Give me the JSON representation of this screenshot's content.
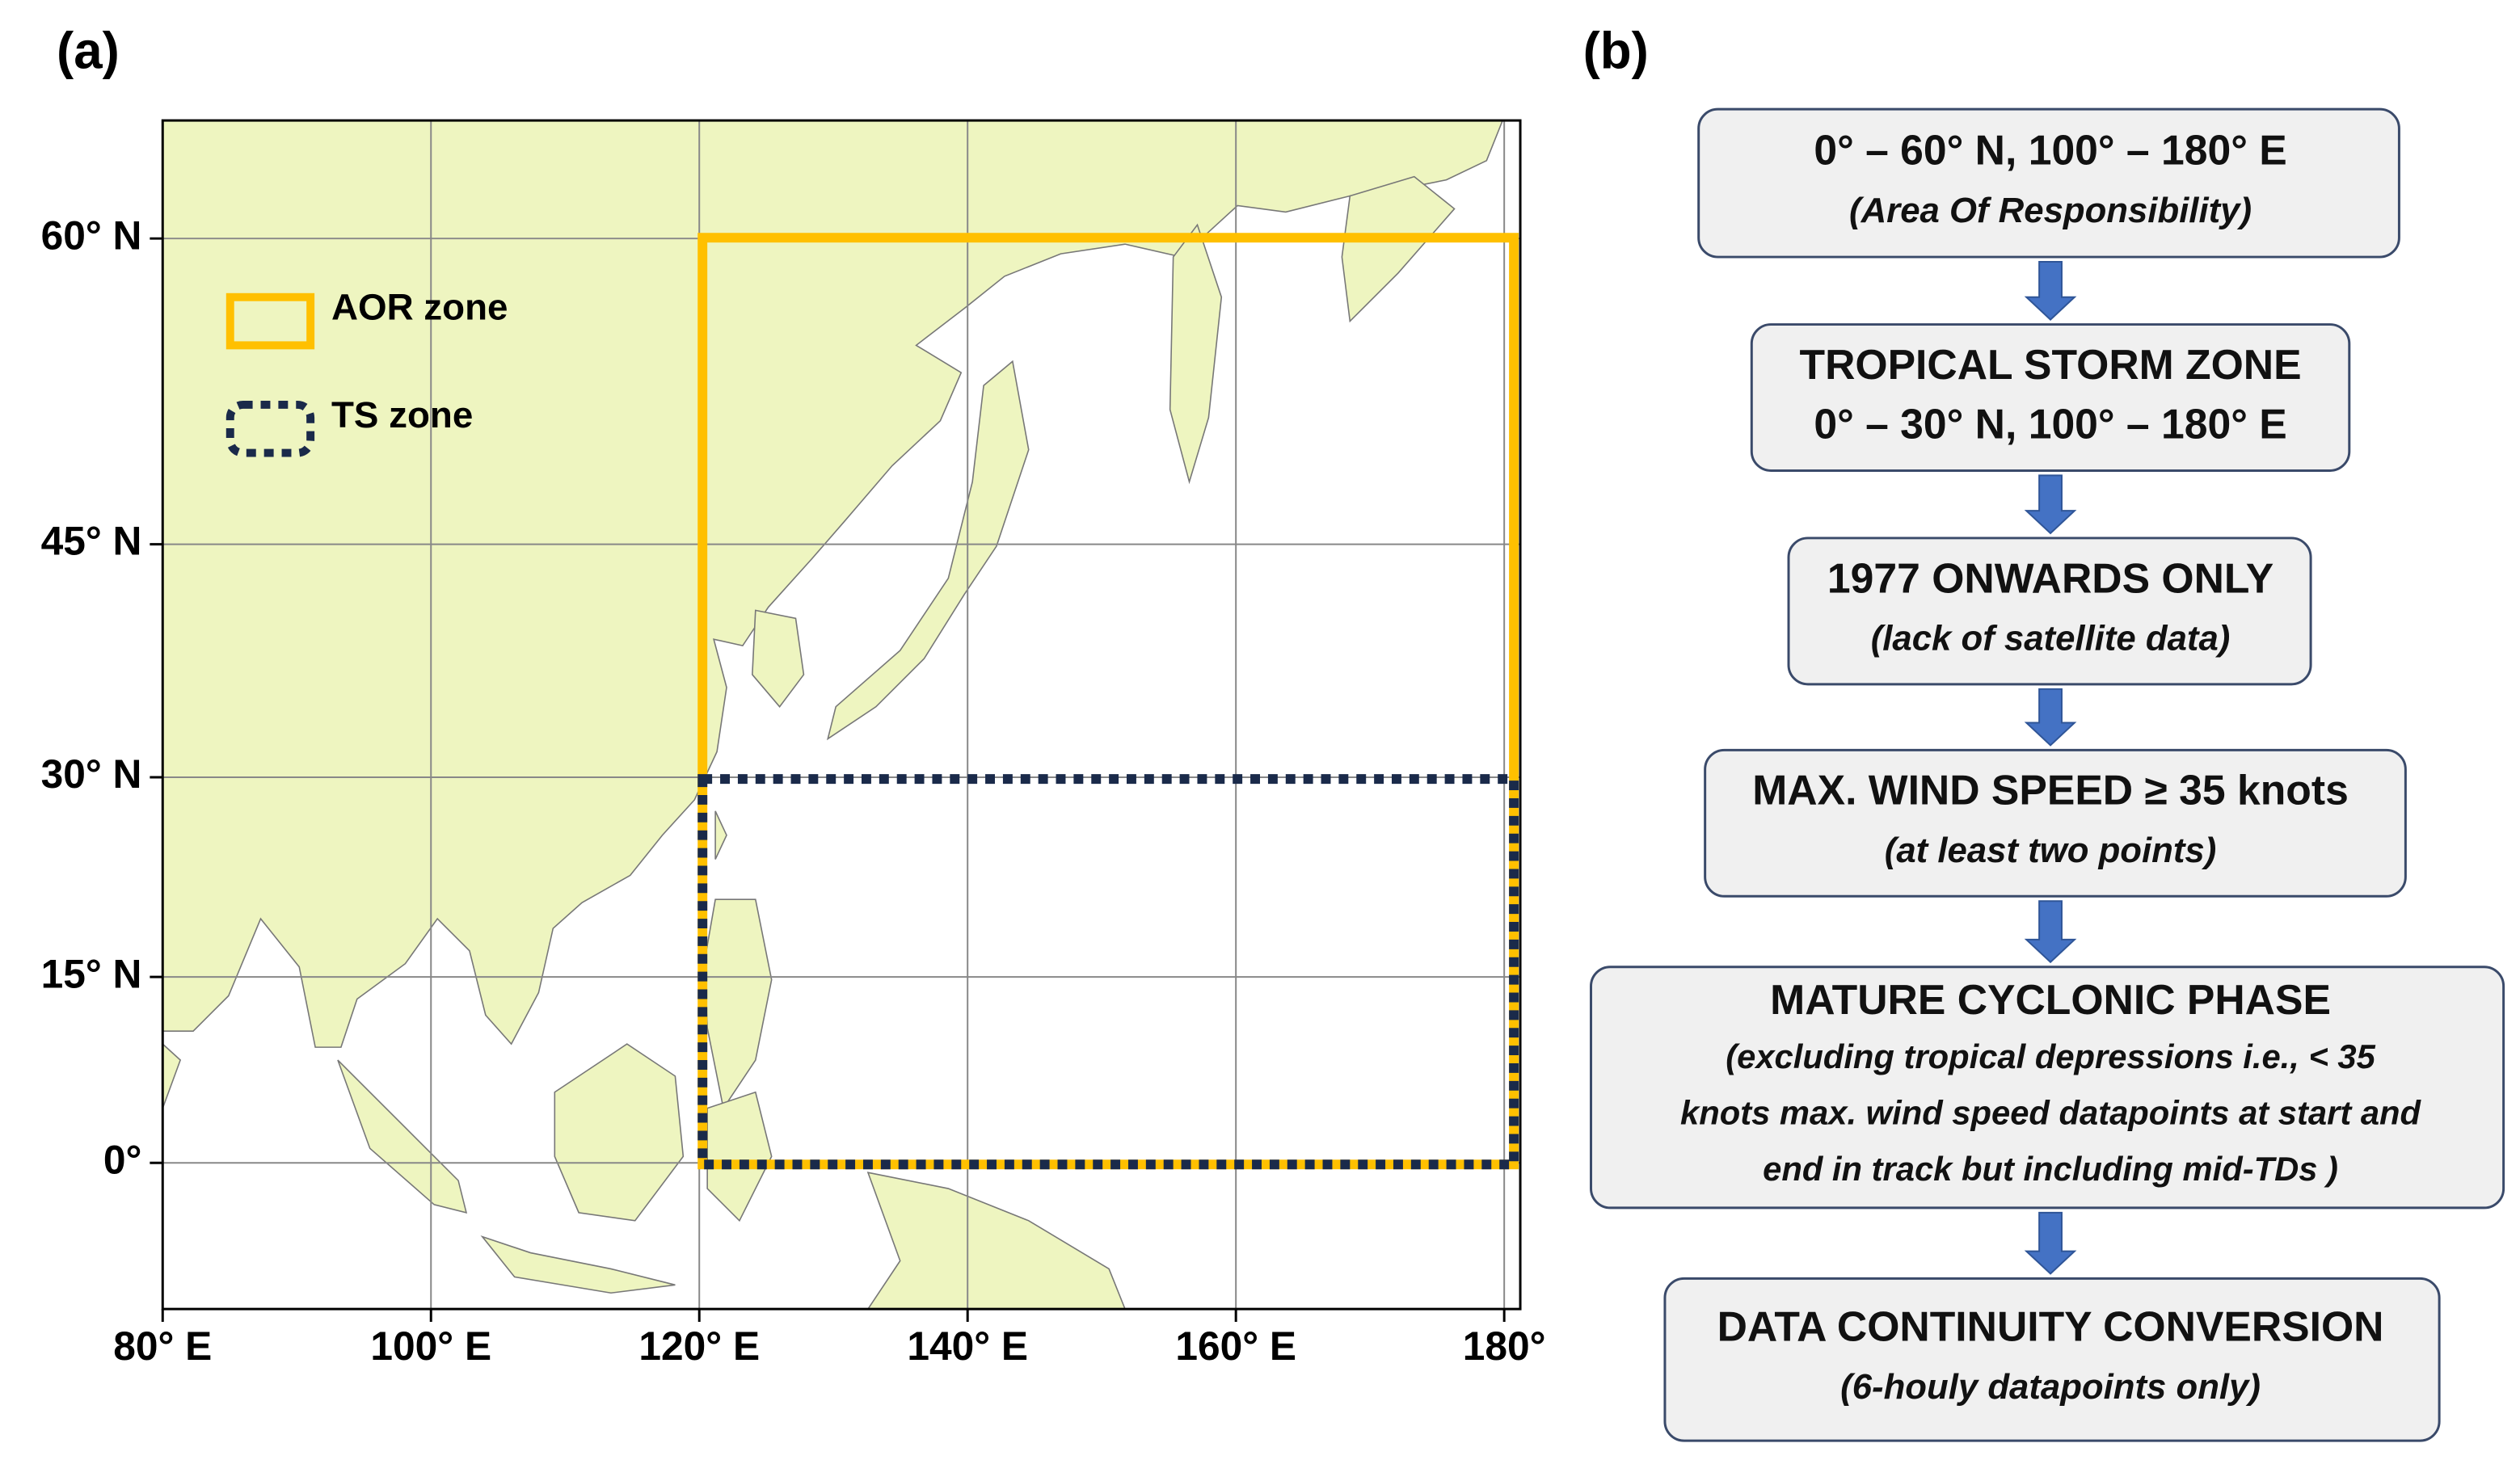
{
  "panel_a": {
    "label": "(a)",
    "legend": [
      {
        "label": "AOR zone"
      },
      {
        "label": "TS zone"
      }
    ],
    "lat_ticks": [
      {
        "value": 60,
        "label": "60° N"
      },
      {
        "value": 45,
        "label": "45° N"
      },
      {
        "value": 30,
        "label": "30° N"
      },
      {
        "value": 15,
        "label": "15° N"
      },
      {
        "value": 0,
        "label": "0°"
      }
    ],
    "lon_ticks": [
      {
        "value": 80,
        "label": "80° E"
      },
      {
        "value": 100,
        "label": "100° E"
      },
      {
        "value": 120,
        "label": "120° E"
      },
      {
        "value": 140,
        "label": "140° E"
      },
      {
        "value": 160,
        "label": "160° E"
      },
      {
        "value": 180,
        "label": "180°"
      }
    ]
  },
  "panel_b": {
    "label": "(b)",
    "steps": [
      {
        "lines": [
          "0° – 60° N, 100° – 180° E",
          "(Area Of Responsibility)"
        ]
      },
      {
        "lines": [
          "TROPICAL STORM ZONE",
          "0° – 30° N, 100° – 180° E"
        ]
      },
      {
        "lines": [
          "1977 ONWARDS ONLY",
          "(lack of satellite data)"
        ]
      },
      {
        "lines": [
          "MAX. WIND SPEED ≥ 35 knots",
          "(at least two points)"
        ]
      },
      {
        "lines": [
          "MATURE CYCLONIC PHASE",
          "(excluding tropical depressions i.e., < 35",
          "knots max. wind speed datapoints at start and",
          "end in track but including mid-TDs )"
        ]
      },
      {
        "lines": [
          "DATA CONTINUITY CONVERSION",
          "(6-houly datapoints only)"
        ]
      }
    ]
  }
}
